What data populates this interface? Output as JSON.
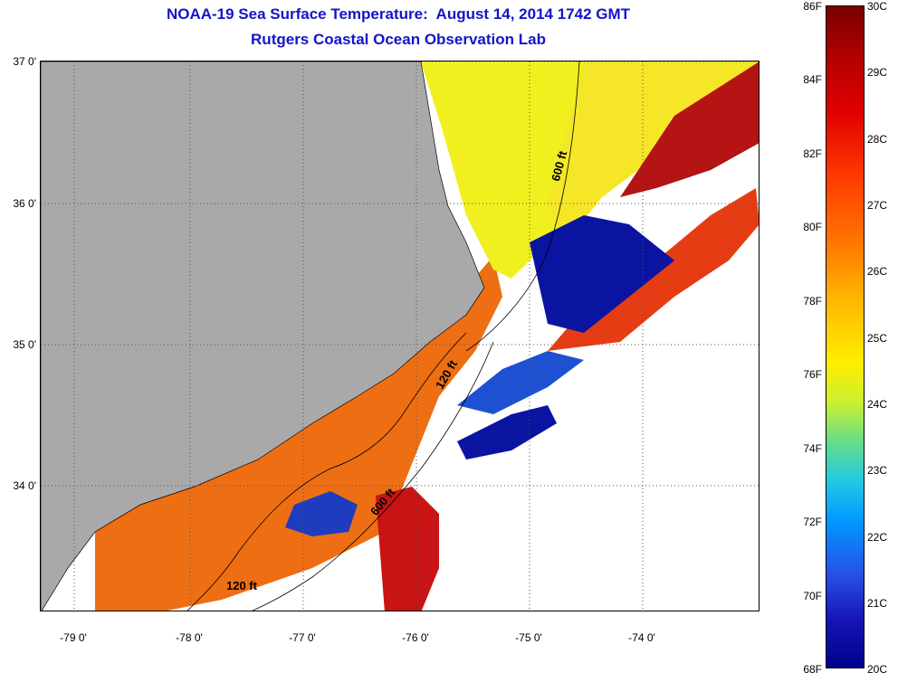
{
  "title": {
    "line1": "NOAA-19 Sea Surface Temperature:  August 14, 2014 1742 GMT",
    "line2": "Rutgers Coastal Ocean Observation Lab"
  },
  "axes": {
    "latitude_labels": [
      "37 0'",
      "36 0'",
      "35 0'",
      "34 0'"
    ],
    "longitude_labels": [
      "-79 0'",
      "-78 0'",
      "-77 0'",
      "-76 0'",
      "-75 0'",
      "-74 0'"
    ]
  },
  "contours": {
    "labels": [
      "600 ft",
      "120 ft",
      "600 ft",
      "120 ft"
    ]
  },
  "colorbar": {
    "fahrenheit_labels": [
      "86F",
      "84F",
      "82F",
      "80F",
      "78F",
      "76F",
      "74F",
      "72F",
      "70F",
      "68F"
    ],
    "celsius_labels": [
      "30C",
      "29C",
      "28C",
      "27C",
      "26C",
      "25C",
      "24C",
      "23C",
      "22C",
      "21C",
      "20C"
    ]
  },
  "colors": {
    "land": "#a9a9a9",
    "title": "#1414c8",
    "warm": "#c80000",
    "mid": "#ffee00",
    "cool": "#0a0aa0"
  }
}
